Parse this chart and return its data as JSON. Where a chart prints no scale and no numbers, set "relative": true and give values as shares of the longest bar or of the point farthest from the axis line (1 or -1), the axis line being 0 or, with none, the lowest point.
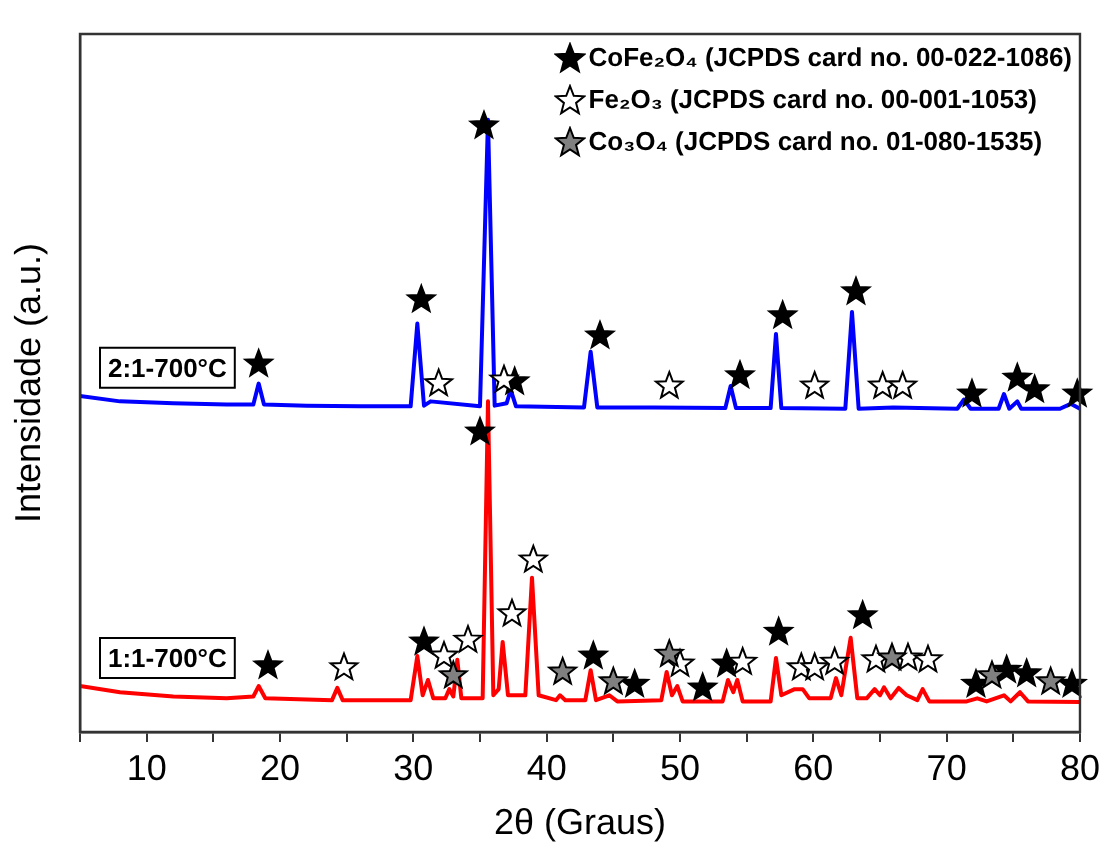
{
  "chart_data": {
    "type": "line",
    "xlabel": "2θ (Graus)",
    "ylabel": "Intensidade (a.u.)",
    "relative": true,
    "xlim": [
      5,
      80
    ],
    "xticks": [
      {
        "value": 5,
        "label": null
      },
      10,
      {
        "value": 15,
        "label": null
      },
      20,
      {
        "value": 25,
        "label": null
      },
      30,
      {
        "value": 35,
        "label": null
      },
      40,
      {
        "value": 45,
        "label": null
      },
      50,
      {
        "value": 55,
        "label": null
      },
      60,
      {
        "value": 65,
        "label": null
      },
      70,
      {
        "value": 75,
        "label": null
      },
      80
    ],
    "grid": false,
    "legend": "top right",
    "line_style": "solid",
    "series": [
      {
        "name": "2:1-700°C",
        "marker": "none",
        "color": "#0000ff",
        "x": [
          5,
          8,
          12,
          16,
          18.0,
          18.4,
          18.8,
          22,
          26,
          29.8,
          30.3,
          30.8,
          31.3,
          35.0,
          35.6,
          36.1,
          37.0,
          37.3,
          37.7,
          42.8,
          43.3,
          43.8,
          48,
          53.4,
          53.8,
          54.2,
          56.8,
          57.2,
          57.6,
          62.4,
          62.9,
          63.4,
          66,
          70.8,
          71.3,
          71.8,
          73.9,
          74.3,
          74.7,
          75.3,
          75.6,
          76,
          78.5,
          79.3,
          80
        ],
        "values": [
          0.549,
          0.54,
          0.537,
          0.535,
          0.535,
          0.569,
          0.535,
          0.533,
          0.532,
          0.532,
          0.667,
          0.533,
          0.54,
          0.532,
          1.0,
          0.533,
          0.537,
          0.559,
          0.532,
          0.53,
          0.621,
          0.53,
          0.53,
          0.529,
          0.565,
          0.529,
          0.529,
          0.65,
          0.529,
          0.528,
          0.686,
          0.528,
          0.53,
          0.528,
          0.543,
          0.528,
          0.528,
          0.552,
          0.528,
          0.54,
          0.528,
          0.528,
          0.528,
          0.536,
          0.528
        ]
      },
      {
        "name": "1:1-700°C",
        "marker": "none",
        "color": "#ff0000",
        "x": [
          5,
          8,
          12,
          16,
          18.0,
          18.4,
          18.9,
          23.9,
          24.3,
          24.7,
          29.8,
          30.3,
          30.7,
          31.1,
          31.5,
          32.4,
          32.7,
          33.0,
          33.3,
          33.6,
          35.2,
          35.6,
          36.0,
          36.4,
          36.7,
          37.1,
          38.4,
          38.9,
          39.4,
          40.7,
          41.0,
          41.4,
          42.9,
          43.3,
          43.7,
          44.7,
          45.3,
          48.6,
          49.0,
          49.4,
          49.8,
          50.2,
          53.2,
          53.6,
          54.0,
          54.3,
          54.7,
          56.8,
          57.2,
          57.6,
          58.6,
          59.2,
          59.7,
          61.3,
          61.7,
          62.1,
          62.8,
          63.3,
          64.0,
          64.6,
          65.0,
          65.3,
          65.8,
          66.4,
          67.0,
          67.8,
          68.2,
          68.7,
          71.5,
          72.3,
          73,
          74.3,
          74.8,
          75.5,
          76.1,
          80
        ],
        "values": [
          0.075,
          0.065,
          0.058,
          0.055,
          0.058,
          0.075,
          0.055,
          0.052,
          0.072,
          0.052,
          0.052,
          0.124,
          0.06,
          0.085,
          0.055,
          0.055,
          0.07,
          0.058,
          0.118,
          0.055,
          0.055,
          0.54,
          0.06,
          0.07,
          0.147,
          0.06,
          0.06,
          0.252,
          0.06,
          0.052,
          0.06,
          0.052,
          0.052,
          0.101,
          0.052,
          0.06,
          0.05,
          0.052,
          0.098,
          0.06,
          0.075,
          0.05,
          0.05,
          0.085,
          0.065,
          0.085,
          0.05,
          0.05,
          0.121,
          0.06,
          0.07,
          0.07,
          0.055,
          0.055,
          0.088,
          0.06,
          0.154,
          0.055,
          0.055,
          0.07,
          0.06,
          0.073,
          0.055,
          0.072,
          0.06,
          0.052,
          0.07,
          0.05,
          0.05,
          0.055,
          0.05,
          0.06,
          0.05,
          0.065,
          0.05,
          0.049
        ]
      },
      {
        "name": "CoFe₂O₄ (JCPDS card no. 00-022-1086)",
        "type": "scatter",
        "marker": "star",
        "color": "#000000",
        "x": [
          18.4,
          30.6,
          35.3,
          37.6,
          44.0,
          54.5,
          57.7,
          63.2,
          71.9,
          75.3,
          76.6,
          79.8,
          19.1,
          30.8,
          35.0,
          43.5,
          46.6,
          51.7,
          53.5,
          57.4,
          63.7,
          72.2,
          74.5,
          76.0,
          79.4
        ],
        "values": [
          0.601,
          0.706,
          0.99,
          0.572,
          0.647,
          0.582,
          0.68,
          0.719,
          0.552,
          0.578,
          0.559,
          0.552,
          0.108,
          0.147,
          0.49,
          0.124,
          0.078,
          0.072,
          0.111,
          0.163,
          0.19,
          0.078,
          0.101,
          0.095,
          0.078
        ]
      },
      {
        "name": "Fe₂O₃ (JCPDS card no. 00-001-1053)",
        "type": "scatter",
        "marker": "star",
        "color": "#ffffff",
        "x": [
          31.9,
          36.8,
          49.2,
          60.1,
          65.2,
          66.7,
          24.8,
          32.3,
          34.1,
          37.4,
          39.0,
          50.0,
          54.7,
          59.1,
          60.1,
          61.6,
          64.7,
          67.1,
          68.6
        ],
        "values": [
          0.569,
          0.575,
          0.565,
          0.565,
          0.565,
          0.565,
          0.105,
          0.124,
          0.15,
          0.193,
          0.281,
          0.111,
          0.114,
          0.105,
          0.105,
          0.114,
          0.118,
          0.121,
          0.118
        ]
      },
      {
        "name": "Co₃O₄ (JCPDS card no. 01-080-1535)",
        "type": "scatter",
        "marker": "star",
        "color": "#808080",
        "x": [
          33.0,
          41.2,
          45.0,
          49.2,
          65.9,
          73.4,
          77.8
        ],
        "values": [
          0.092,
          0.098,
          0.082,
          0.127,
          0.121,
          0.092,
          0.082
        ]
      }
    ]
  }
}
